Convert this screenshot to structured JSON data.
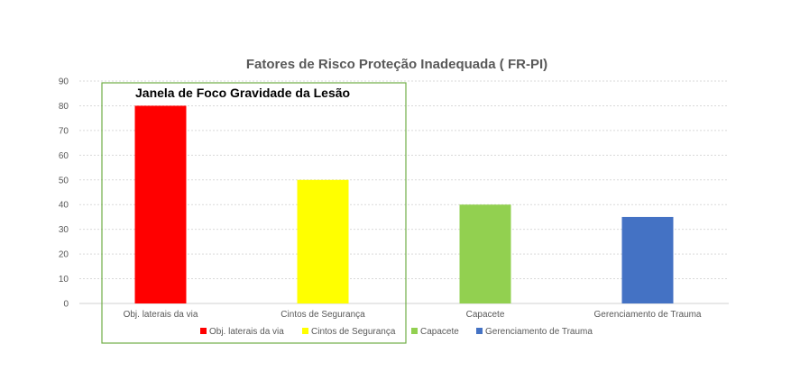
{
  "chart_data": {
    "type": "bar",
    "title": "Fatores de Risco Proteção Inadequada ( FR-PI)",
    "categories": [
      "Obj. laterais da via",
      "Cintos de Segurança",
      "Capacete",
      "Gerenciamento de Trauma"
    ],
    "values": [
      80,
      50,
      40,
      35
    ],
    "colors": [
      "#ff0000",
      "#ffff00",
      "#92d050",
      "#4472c4"
    ],
    "legend": [
      "Obj. laterais da via",
      "Cintos de Segurança",
      "Capacete",
      "Gerenciamento de Trauma"
    ],
    "legend_position": "bottom",
    "ylim": [
      0,
      90
    ],
    "yticks": [
      "0",
      "10",
      "20",
      "30",
      "40",
      "50",
      "60",
      "70",
      "80",
      "90"
    ],
    "grid": true,
    "xlabel": "",
    "ylabel": "",
    "annotation": {
      "text": "Janela de Foco Gravidade da Lesão",
      "border_color": "#70ad47"
    }
  }
}
